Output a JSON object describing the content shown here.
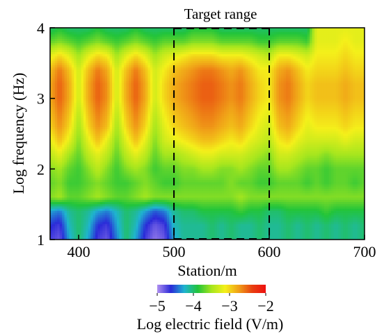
{
  "chart_data": {
    "type": "heatmap",
    "title": "",
    "xlabel": "Station/m",
    "ylabel": "Log frequency (Hz)",
    "xlim": [
      370,
      700
    ],
    "ylim": [
      1,
      4
    ],
    "x_ticks": [
      400,
      500,
      600,
      700
    ],
    "y_ticks": [
      1,
      2,
      3,
      4
    ],
    "grid": false,
    "annotations": [
      {
        "type": "box",
        "label": "Target range",
        "x_range": [
          500,
          600
        ],
        "y_range": [
          1,
          4
        ],
        "style": "dashed"
      }
    ],
    "colorbar": {
      "label": "Log electric field (V/m)",
      "range": [
        -5,
        -2
      ],
      "ticks": [
        -5,
        -4,
        -3,
        -2
      ],
      "colors": [
        "#b090f0",
        "#2a2ad8",
        "#1fb4d0",
        "#22c43a",
        "#a6e61e",
        "#f4f01a",
        "#f0a018",
        "#e84010",
        "#ee1010"
      ],
      "placement": "bottom"
    },
    "stations": [
      370,
      380,
      390,
      400,
      410,
      420,
      430,
      440,
      450,
      460,
      470,
      480,
      490,
      500,
      510,
      520,
      530,
      540,
      550,
      560,
      570,
      580,
      590,
      600,
      610,
      620,
      630,
      640,
      650,
      660,
      670,
      680,
      690,
      700
    ],
    "log_frequencies": [
      1.0,
      1.2,
      1.4,
      1.6,
      1.8,
      2.0,
      2.2,
      2.4,
      2.6,
      2.8,
      3.0,
      3.2,
      3.4,
      3.6,
      3.8,
      4.0
    ],
    "values": [
      [
        -4.7,
        -4.8,
        -4.3,
        -4.0,
        -4.3,
        -4.7,
        -4.8,
        -4.4,
        -4.0,
        -4.3,
        -4.7,
        -4.9,
        -4.8,
        -4.3,
        -4.1,
        -4.1,
        -4.1,
        -4.0,
        -4.1,
        -4.0,
        -4.1,
        -4.1,
        -4.0,
        -4.1,
        -4.1,
        -4.0,
        -4.1,
        -4.0,
        -4.1,
        -4.0,
        -4.1,
        -4.0,
        -4.1,
        -4.0
      ],
      [
        -4.6,
        -4.7,
        -4.2,
        -4.0,
        -4.2,
        -4.6,
        -4.7,
        -4.3,
        -4.0,
        -4.2,
        -4.6,
        -4.8,
        -4.7,
        -4.2,
        -4.1,
        -4.1,
        -4.1,
        -4.0,
        -4.1,
        -4.0,
        -4.1,
        -4.1,
        -4.0,
        -4.1,
        -4.1,
        -4.0,
        -4.1,
        -4.0,
        -4.1,
        -4.0,
        -4.1,
        -4.0,
        -4.1,
        -4.0
      ],
      [
        -4.3,
        -4.4,
        -4.1,
        -4.0,
        -4.1,
        -4.3,
        -4.4,
        -4.2,
        -4.0,
        -4.1,
        -4.3,
        -4.5,
        -4.4,
        -4.1,
        -4.0,
        -4.0,
        -3.9,
        -3.9,
        -3.9,
        -3.9,
        -3.8,
        -3.9,
        -3.9,
        -4.0,
        -4.0,
        -3.9,
        -3.9,
        -3.9,
        -3.9,
        -3.8,
        -3.9,
        -3.9,
        -3.9,
        -3.9
      ],
      [
        -3.6,
        -3.5,
        -3.7,
        -3.7,
        -3.6,
        -3.5,
        -3.6,
        -3.7,
        -3.7,
        -3.6,
        -3.5,
        -3.6,
        -3.6,
        -3.6,
        -3.6,
        -3.6,
        -3.6,
        -3.6,
        -3.6,
        -3.6,
        -3.5,
        -3.6,
        -3.6,
        -3.6,
        -3.6,
        -3.6,
        -3.6,
        -3.6,
        -3.6,
        -3.6,
        -3.6,
        -3.6,
        -3.6,
        -3.6
      ],
      [
        -3.7,
        -3.6,
        -3.8,
        -3.8,
        -3.7,
        -3.6,
        -3.7,
        -3.8,
        -3.8,
        -3.7,
        -3.6,
        -3.7,
        -3.8,
        -3.8,
        -3.7,
        -3.7,
        -3.7,
        -3.7,
        -3.7,
        -3.6,
        -3.7,
        -3.7,
        -3.8,
        -3.8,
        -3.7,
        -3.7,
        -3.7,
        -3.8,
        -3.7,
        -3.8,
        -3.7,
        -3.7,
        -3.8,
        -3.7
      ],
      [
        -3.6,
        -3.5,
        -3.7,
        -3.8,
        -3.6,
        -3.4,
        -3.6,
        -3.8,
        -3.6,
        -3.5,
        -3.6,
        -3.8,
        -3.7,
        -3.7,
        -3.6,
        -3.6,
        -3.5,
        -3.5,
        -3.6,
        -3.6,
        -3.5,
        -3.6,
        -3.7,
        -3.7,
        -3.5,
        -3.5,
        -3.6,
        -3.7,
        -3.7,
        -3.8,
        -3.7,
        -3.7,
        -3.7,
        -3.7
      ],
      [
        -3.4,
        -3.2,
        -3.5,
        -3.7,
        -3.4,
        -3.2,
        -3.4,
        -3.7,
        -3.4,
        -3.2,
        -3.4,
        -3.7,
        -3.5,
        -3.5,
        -3.4,
        -3.3,
        -3.2,
        -3.2,
        -3.3,
        -3.3,
        -3.3,
        -3.4,
        -3.5,
        -3.6,
        -3.3,
        -3.3,
        -3.4,
        -3.5,
        -3.5,
        -3.6,
        -3.5,
        -3.5,
        -3.5,
        -3.5
      ],
      [
        -3.2,
        -2.9,
        -3.2,
        -3.6,
        -3.2,
        -2.9,
        -3.2,
        -3.6,
        -3.2,
        -2.9,
        -3.2,
        -3.6,
        -3.3,
        -3.2,
        -3.1,
        -3.0,
        -2.9,
        -2.9,
        -3.0,
        -3.1,
        -3.0,
        -3.2,
        -3.3,
        -3.4,
        -3.1,
        -3.0,
        -3.2,
        -3.3,
        -3.3,
        -3.3,
        -3.3,
        -3.2,
        -3.3,
        -3.3
      ],
      [
        -3.0,
        -2.7,
        -3.0,
        -3.5,
        -3.0,
        -2.7,
        -2.9,
        -3.5,
        -3.0,
        -2.7,
        -3.0,
        -3.5,
        -3.2,
        -3.0,
        -2.9,
        -2.8,
        -2.7,
        -2.7,
        -2.8,
        -2.9,
        -2.8,
        -3.0,
        -3.2,
        -3.3,
        -2.9,
        -2.8,
        -3.0,
        -3.2,
        -3.1,
        -3.1,
        -3.1,
        -3.0,
        -3.1,
        -3.1
      ],
      [
        -2.9,
        -2.6,
        -2.9,
        -3.4,
        -2.9,
        -2.6,
        -2.8,
        -3.4,
        -2.9,
        -2.6,
        -2.9,
        -3.4,
        -3.1,
        -2.9,
        -2.8,
        -2.7,
        -2.6,
        -2.6,
        -2.7,
        -2.8,
        -2.7,
        -2.9,
        -3.1,
        -3.2,
        -2.8,
        -2.7,
        -2.9,
        -3.1,
        -3.0,
        -3.0,
        -3.0,
        -2.9,
        -3.0,
        -3.0
      ],
      [
        -2.8,
        -2.5,
        -2.8,
        -3.3,
        -2.8,
        -2.5,
        -2.7,
        -3.3,
        -2.8,
        -2.5,
        -2.8,
        -3.3,
        -3.0,
        -2.8,
        -2.7,
        -2.6,
        -2.5,
        -2.5,
        -2.6,
        -2.7,
        -2.6,
        -2.8,
        -3.0,
        -3.1,
        -2.7,
        -2.6,
        -2.8,
        -3.0,
        -2.9,
        -2.9,
        -2.9,
        -2.8,
        -2.9,
        -2.9
      ],
      [
        -2.8,
        -2.5,
        -2.8,
        -3.3,
        -2.8,
        -2.5,
        -2.7,
        -3.3,
        -2.8,
        -2.5,
        -2.8,
        -3.3,
        -3.0,
        -2.8,
        -2.7,
        -2.6,
        -2.5,
        -2.5,
        -2.6,
        -2.7,
        -2.6,
        -2.8,
        -3.0,
        -3.1,
        -2.7,
        -2.6,
        -2.8,
        -3.0,
        -2.9,
        -2.9,
        -2.9,
        -2.8,
        -2.9,
        -2.9
      ],
      [
        -2.9,
        -2.6,
        -2.9,
        -3.3,
        -2.9,
        -2.6,
        -2.8,
        -3.3,
        -2.9,
        -2.6,
        -2.9,
        -3.3,
        -3.1,
        -2.9,
        -2.8,
        -2.7,
        -2.6,
        -2.6,
        -2.7,
        -2.8,
        -2.7,
        -2.9,
        -3.1,
        -3.1,
        -2.8,
        -2.7,
        -2.9,
        -3.1,
        -3.0,
        -3.0,
        -3.0,
        -2.9,
        -3.0,
        -3.0
      ],
      [
        -3.2,
        -3.0,
        -3.2,
        -3.5,
        -3.2,
        -3.0,
        -3.1,
        -3.5,
        -3.2,
        -3.0,
        -3.2,
        -3.5,
        -3.3,
        -3.2,
        -3.1,
        -3.0,
        -3.0,
        -3.0,
        -3.1,
        -3.1,
        -3.1,
        -3.2,
        -3.3,
        -3.4,
        -3.1,
        -3.1,
        -3.2,
        -3.3,
        -3.1,
        -3.1,
        -3.1,
        -3.0,
        -3.1,
        -3.1
      ],
      [
        -3.7,
        -3.6,
        -3.7,
        -3.8,
        -3.7,
        -3.6,
        -3.7,
        -3.8,
        -3.7,
        -3.6,
        -3.7,
        -3.8,
        -3.7,
        -3.7,
        -3.7,
        -3.6,
        -3.6,
        -3.6,
        -3.7,
        -3.7,
        -3.7,
        -3.7,
        -3.8,
        -3.8,
        -3.7,
        -3.7,
        -3.7,
        -3.8,
        -3.2,
        -3.2,
        -3.2,
        -3.1,
        -3.2,
        -3.2
      ],
      [
        -4.0,
        -3.9,
        -4.0,
        -4.0,
        -4.0,
        -3.9,
        -4.0,
        -4.0,
        -4.0,
        -3.9,
        -4.0,
        -4.0,
        -4.0,
        -4.0,
        -4.0,
        -3.9,
        -3.9,
        -3.9,
        -4.0,
        -4.0,
        -4.0,
        -4.0,
        -4.0,
        -4.0,
        -4.0,
        -4.0,
        -4.0,
        -4.0,
        -3.2,
        -3.2,
        -3.2,
        -3.2,
        -3.2,
        -3.2
      ]
    ]
  }
}
